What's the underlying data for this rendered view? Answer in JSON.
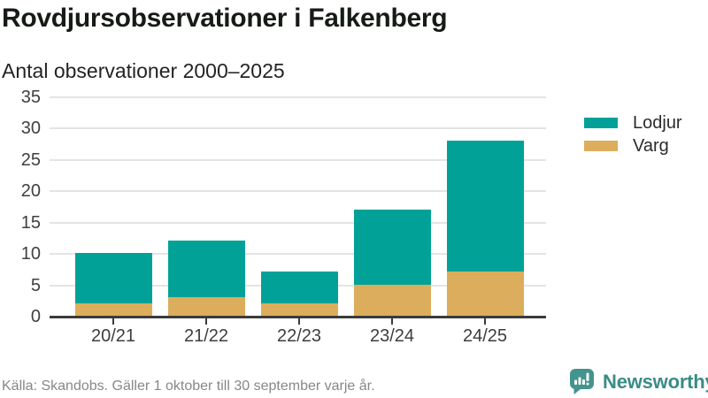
{
  "header": {
    "title": "Rovdjursobservationer i Falkenberg",
    "subtitle": "Antal observationer 2000–2025"
  },
  "chart_data": {
    "type": "bar",
    "stacked": true,
    "title": "Rovdjursobservationer i Falkenberg",
    "subtitle": "Antal observationer 2000–2025",
    "categories": [
      "20/21",
      "21/22",
      "22/23",
      "23/24",
      "24/25"
    ],
    "series": [
      {
        "name": "Varg",
        "color": "#dcad5c",
        "values": [
          2,
          3,
          2,
          5,
          7
        ]
      },
      {
        "name": "Lodjur",
        "color": "#02a198",
        "values": [
          8,
          9,
          5,
          12,
          21
        ]
      }
    ],
    "totals": [
      10,
      12,
      7,
      17,
      28
    ],
    "ylim": [
      0,
      35
    ],
    "yticks": [
      0,
      5,
      10,
      15,
      20,
      25,
      30,
      35
    ],
    "grid": "horizontal",
    "legend_position": "top-right"
  },
  "legend": {
    "items": [
      {
        "label": "Lodjur",
        "color": "#02a198"
      },
      {
        "label": "Varg",
        "color": "#dcad5c"
      }
    ]
  },
  "footer": {
    "source": "Källa: Skandobs. Gäller 1 oktober till 30 september varje år.",
    "brand": "Newsworthy"
  },
  "colors": {
    "lodjur": "#02a198",
    "varg": "#dcad5c",
    "axis": "#3b3b3b",
    "gridline": "#e4e4e4",
    "brand_teal": "#3b8c86",
    "source_gray": "#878787"
  }
}
